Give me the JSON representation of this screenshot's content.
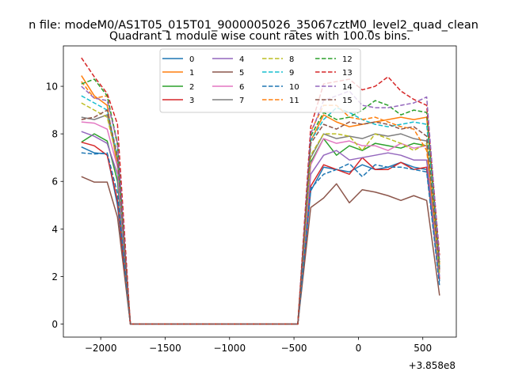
{
  "chart_data": {
    "type": "line",
    "suptitle": "n file: modeM0/AS1T05_015T01_9000005026_35067cztM0_level2_quad_clean",
    "title": "Quadrant 1 module wise count rates with 100.0s bins.",
    "xlabel": "",
    "ylabel": "",
    "x_offset_label": "+3.858e8",
    "xlim": [
      -2290,
      760
    ],
    "ylim": [
      -0.55,
      11.7
    ],
    "xticks": [
      -2000,
      -1500,
      -1000,
      -500,
      0,
      500
    ],
    "xtick_labels": [
      "−2000",
      "−1500",
      "−1000",
      "−500",
      "0",
      "500"
    ],
    "yticks": [
      0,
      2,
      4,
      6,
      8,
      10
    ],
    "ytick_labels": [
      "0",
      "2",
      "4",
      "6",
      "8",
      "10"
    ],
    "grid": false,
    "legend_position": "top-center",
    "x": [
      -2150,
      -2050,
      -1950,
      -1870,
      -1770,
      -1670,
      -1570,
      -1470,
      -1370,
      -1270,
      -1170,
      -1070,
      -970,
      -870,
      -770,
      -670,
      -570,
      -470,
      -370,
      -270,
      -170,
      -70,
      30,
      130,
      230,
      330,
      430,
      530,
      630
    ],
    "series": [
      {
        "name": "0",
        "color": "#1f77b4",
        "dash": false,
        "values": [
          7.45,
          7.2,
          7.15,
          5.0,
          0,
          0,
          0,
          0,
          0,
          0,
          0,
          0,
          0,
          0,
          0,
          0,
          0,
          0,
          5.6,
          6.6,
          6.5,
          6.4,
          6.7,
          6.5,
          6.6,
          6.8,
          6.6,
          6.5,
          1.8
        ]
      },
      {
        "name": "1",
        "color": "#ff7f0e",
        "dash": false,
        "values": [
          10.45,
          9.6,
          9.2,
          6.6,
          0,
          0,
          0,
          0,
          0,
          0,
          0,
          0,
          0,
          0,
          0,
          0,
          0,
          0,
          7.7,
          8.8,
          8.5,
          8.3,
          8.4,
          8.5,
          8.6,
          8.7,
          8.6,
          8.7,
          2.5
        ]
      },
      {
        "name": "2",
        "color": "#2ca02c",
        "dash": false,
        "values": [
          7.65,
          8.0,
          7.7,
          6.0,
          0,
          0,
          0,
          0,
          0,
          0,
          0,
          0,
          0,
          0,
          0,
          0,
          0,
          0,
          6.8,
          7.8,
          7.1,
          7.5,
          7.3,
          7.6,
          7.5,
          7.4,
          7.6,
          7.5,
          2.2
        ]
      },
      {
        "name": "3",
        "color": "#d62728",
        "dash": false,
        "values": [
          7.65,
          7.5,
          7.1,
          5.2,
          0,
          0,
          0,
          0,
          0,
          0,
          0,
          0,
          0,
          0,
          0,
          0,
          0,
          0,
          5.8,
          6.7,
          6.5,
          6.3,
          7.0,
          6.5,
          6.5,
          6.8,
          6.5,
          6.6,
          1.9
        ]
      },
      {
        "name": "4",
        "color": "#9467bd",
        "dash": false,
        "values": [
          8.1,
          7.9,
          7.6,
          6.3,
          0,
          0,
          0,
          0,
          0,
          0,
          0,
          0,
          0,
          0,
          0,
          0,
          0,
          0,
          6.3,
          7.1,
          7.3,
          6.9,
          7.0,
          7.1,
          7.2,
          7.1,
          6.9,
          6.9,
          2.0
        ]
      },
      {
        "name": "5",
        "color": "#8c564b",
        "dash": false,
        "values": [
          6.2,
          5.97,
          5.97,
          4.5,
          0,
          0,
          0,
          0,
          0,
          0,
          0,
          0,
          0,
          0,
          0,
          0,
          0,
          0,
          4.9,
          5.3,
          5.9,
          5.1,
          5.65,
          5.55,
          5.4,
          5.2,
          5.4,
          5.2,
          1.2
        ]
      },
      {
        "name": "6",
        "color": "#e377c2",
        "dash": false,
        "values": [
          8.5,
          8.45,
          8.2,
          6.6,
          0,
          0,
          0,
          0,
          0,
          0,
          0,
          0,
          0,
          0,
          0,
          0,
          0,
          0,
          6.7,
          7.8,
          7.6,
          7.7,
          7.5,
          7.5,
          7.3,
          7.6,
          7.4,
          7.5,
          2.2
        ]
      },
      {
        "name": "7",
        "color": "#7f7f7f",
        "dash": false,
        "values": [
          8.7,
          8.6,
          8.8,
          6.9,
          0,
          0,
          0,
          0,
          0,
          0,
          0,
          0,
          0,
          0,
          0,
          0,
          0,
          0,
          7.0,
          8.0,
          7.8,
          7.9,
          7.8,
          8.0,
          7.9,
          8.0,
          7.8,
          7.7,
          2.3
        ]
      },
      {
        "name": "8",
        "color": "#bcbd22",
        "dash": true,
        "values": [
          9.3,
          9.0,
          8.7,
          6.9,
          0,
          0,
          0,
          0,
          0,
          0,
          0,
          0,
          0,
          0,
          0,
          0,
          0,
          0,
          7.1,
          8.0,
          8.0,
          7.9,
          7.3,
          8.0,
          7.8,
          7.6,
          7.3,
          7.6,
          2.1
        ]
      },
      {
        "name": "9",
        "color": "#17becf",
        "dash": true,
        "values": [
          9.6,
          9.3,
          9.0,
          7.1,
          0,
          0,
          0,
          0,
          0,
          0,
          0,
          0,
          0,
          0,
          0,
          0,
          0,
          0,
          7.7,
          8.6,
          9.1,
          8.9,
          8.6,
          8.4,
          8.3,
          8.4,
          8.5,
          8.4,
          2.4
        ]
      },
      {
        "name": "10",
        "color": "#1f77b4",
        "dash": true,
        "values": [
          7.2,
          7.15,
          7.2,
          5.5,
          0,
          0,
          0,
          0,
          0,
          0,
          0,
          0,
          0,
          0,
          0,
          0,
          0,
          0,
          5.7,
          6.3,
          6.5,
          6.75,
          6.2,
          6.7,
          6.6,
          6.6,
          6.5,
          6.4,
          1.6
        ]
      },
      {
        "name": "11",
        "color": "#ff7f0e",
        "dash": true,
        "values": [
          10.2,
          9.5,
          9.6,
          7.5,
          0,
          0,
          0,
          0,
          0,
          0,
          0,
          0,
          0,
          0,
          0,
          0,
          0,
          0,
          8.1,
          9.2,
          9.2,
          8.7,
          8.6,
          8.7,
          8.5,
          8.3,
          8.2,
          7.3,
          2.6
        ]
      },
      {
        "name": "12",
        "color": "#2ca02c",
        "dash": true,
        "values": [
          10.1,
          10.3,
          9.6,
          7.6,
          0,
          0,
          0,
          0,
          0,
          0,
          0,
          0,
          0,
          0,
          0,
          0,
          0,
          0,
          7.9,
          8.9,
          8.6,
          8.7,
          9.0,
          9.4,
          9.2,
          8.8,
          9.0,
          8.9,
          2.6
        ]
      },
      {
        "name": "13",
        "color": "#d62728",
        "dash": true,
        "values": [
          11.2,
          10.4,
          9.7,
          8.4,
          0,
          0,
          0,
          0,
          0,
          0,
          0,
          0,
          0,
          0,
          0,
          0,
          0,
          0,
          8.3,
          10.1,
          10.2,
          10.3,
          9.85,
          10.0,
          10.4,
          9.8,
          9.45,
          9.2,
          2.9
        ]
      },
      {
        "name": "14",
        "color": "#9467bd",
        "dash": true,
        "values": [
          10.0,
          9.5,
          9.4,
          7.6,
          0,
          0,
          0,
          0,
          0,
          0,
          0,
          0,
          0,
          0,
          0,
          0,
          0,
          0,
          8.0,
          9.4,
          9.6,
          9.8,
          9.2,
          9.1,
          9.1,
          9.2,
          9.3,
          9.55,
          2.7
        ]
      },
      {
        "name": "15",
        "color": "#8c564b",
        "dash": true,
        "values": [
          8.6,
          8.7,
          9.0,
          7.0,
          0,
          0,
          0,
          0,
          0,
          0,
          0,
          0,
          0,
          0,
          0,
          0,
          0,
          0,
          7.6,
          8.4,
          8.2,
          8.5,
          8.4,
          8.5,
          8.4,
          8.2,
          8.3,
          7.9,
          2.3
        ]
      }
    ]
  }
}
